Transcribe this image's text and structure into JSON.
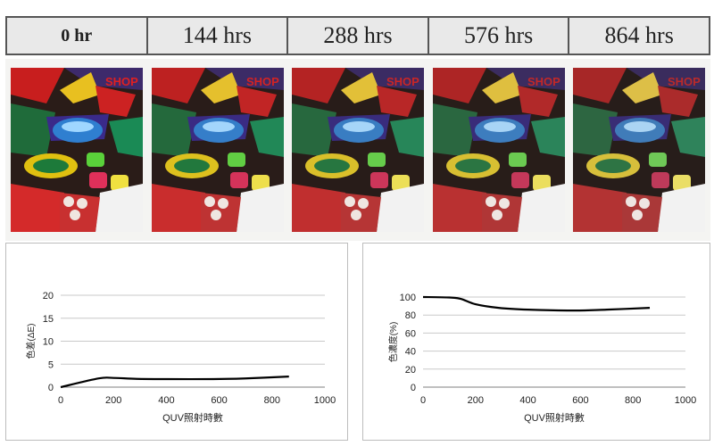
{
  "header": {
    "cells": [
      "0 hr",
      "144 hrs",
      "288 hrs",
      "576 hrs",
      "864 hrs"
    ]
  },
  "samples": {
    "logo_text": "SHOP",
    "count": 5
  },
  "chart_data": [
    {
      "type": "line",
      "title": "",
      "xlabel": "QUV照射時數",
      "ylabel": "色差(ΔE)",
      "xlim": [
        0,
        1000
      ],
      "ylim": [
        0,
        20
      ],
      "x_ticks": [
        0,
        200,
        400,
        600,
        800,
        1000
      ],
      "y_ticks": [
        0,
        5,
        10,
        15,
        20
      ],
      "grid": "horizontal",
      "legend": "none",
      "series": [
        {
          "color": "#000000",
          "x": [
            0,
            144,
            200,
            288,
            400,
            576,
            700,
            864
          ],
          "y": [
            0,
            1.9,
            2.0,
            1.8,
            1.75,
            1.75,
            1.9,
            2.3
          ]
        }
      ]
    },
    {
      "type": "line",
      "title": "",
      "xlabel": "QUV照射時數",
      "ylabel": "色濃度(%)",
      "xlim": [
        0,
        1000
      ],
      "ylim": [
        0,
        100
      ],
      "x_ticks": [
        0,
        200,
        400,
        600,
        800,
        1000
      ],
      "y_ticks": [
        0,
        20,
        40,
        60,
        80,
        100
      ],
      "grid": "horizontal",
      "legend": "none",
      "series": [
        {
          "color": "#000000",
          "x": [
            0,
            100,
            144,
            200,
            288,
            400,
            576,
            700,
            864
          ],
          "y": [
            100,
            99.5,
            98,
            92,
            88,
            86,
            85,
            86,
            88
          ]
        }
      ]
    }
  ]
}
